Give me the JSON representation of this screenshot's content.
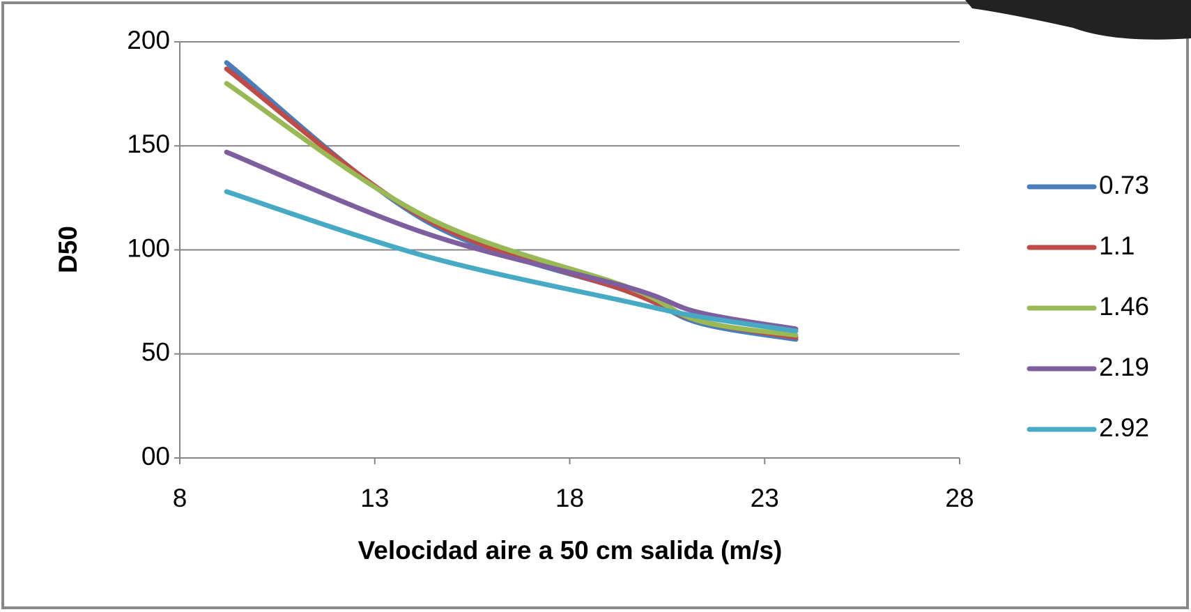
{
  "chart_data": {
    "type": "line",
    "x_label": "Velocidad aire a 50 cm salida (m/s)",
    "y_label": "D50",
    "xlim": [
      8,
      28
    ],
    "xticks": [
      8,
      13,
      18,
      23,
      28
    ],
    "ylim": [
      0,
      200
    ],
    "yticks": [
      {
        "value": 0,
        "label": "00"
      },
      50,
      100,
      150,
      200
    ],
    "grid": true,
    "legend": "right",
    "series": [
      {
        "name": "0.73",
        "color": "#4a7ebb",
        "x": [
          9.2,
          14.3,
          19.5,
          21.3,
          23.8
        ],
        "values": [
          190,
          114,
          80,
          65,
          57
        ]
      },
      {
        "name": "1.1",
        "color": "#be4b48",
        "x": [
          9.2,
          14.3,
          19.5,
          21.3,
          23.8
        ],
        "values": [
          187,
          115,
          80,
          66,
          58
        ]
      },
      {
        "name": "1.46",
        "color": "#98b954",
        "x": [
          9.2,
          14.3,
          19.5,
          21.3,
          23.8
        ],
        "values": [
          180,
          116,
          82,
          66,
          59
        ]
      },
      {
        "name": "2.19",
        "color": "#7d5fa0",
        "x": [
          9.2,
          14.3,
          19.5,
          21.3,
          23.8
        ],
        "values": [
          147,
          108,
          82,
          70,
          62
        ]
      },
      {
        "name": "2.92",
        "color": "#46aac5",
        "x": [
          9.2,
          14.3,
          19.5,
          21.3,
          23.8
        ],
        "values": [
          128,
          97,
          75,
          68,
          61
        ]
      }
    ]
  }
}
